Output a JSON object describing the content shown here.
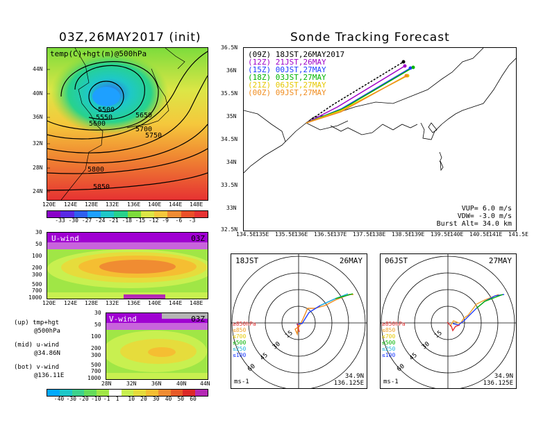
{
  "left_title": "03Z,26MAY2017 (init)",
  "right_title": "Sonde Tracking Forecast",
  "top_map": {
    "label": "temp(C)+hgt(m)@500hPa",
    "lat_ticks": [
      "44N",
      "40N",
      "36N",
      "32N",
      "28N",
      "24N"
    ],
    "lon_ticks": [
      "120E",
      "124E",
      "128E",
      "132E",
      "136E",
      "140E",
      "144E",
      "148E"
    ],
    "contours": [
      "5500",
      "5550",
      "5600",
      "5650",
      "5700",
      "5750",
      "5800",
      "5850"
    ],
    "colorbar_ticks": [
      "-33",
      "-30",
      "-27",
      "-24",
      "-21",
      "-18",
      "-15",
      "-12",
      "-9",
      "-6",
      "-3"
    ],
    "colorbar_colors": [
      "#8a00c8",
      "#5a28e6",
      "#2f60f0",
      "#1ea0ff",
      "#1ec8c8",
      "#28d28c",
      "#7ddc3c",
      "#dce646",
      "#f5c83c",
      "#f08c32",
      "#eb5028",
      "#e63232"
    ]
  },
  "uwind": {
    "label": "U-wind",
    "time": "03Z",
    "p_ticks": [
      "30",
      "50",
      "100",
      "200",
      "300",
      "500",
      "700",
      "1000"
    ],
    "lon_ticks": [
      "120E",
      "124E",
      "128E",
      "132E",
      "136E",
      "140E",
      "144E",
      "148E"
    ]
  },
  "vwind": {
    "label": "V-wind",
    "time": "03Z",
    "p_ticks": [
      "30",
      "50",
      "100",
      "200",
      "300",
      "500",
      "700",
      "1000"
    ],
    "lat_ticks": [
      "28N",
      "32N",
      "36N",
      "40N",
      "44N"
    ]
  },
  "side_labels": [
    "(up) tmp+hgt",
    "@500hPa",
    "(mid) u-wind",
    "@34.86N",
    "(bot) v-wind",
    "@136.11E"
  ],
  "wind_colorbar": {
    "ticks": [
      "-40",
      "-30",
      "-20",
      "-10",
      "-1",
      "1",
      "10",
      "20",
      "30",
      "40",
      "50",
      "60"
    ],
    "colors": [
      "#00aaff",
      "#1ec8c8",
      "#3cd28c",
      "#64dc5a",
      "#a0e646",
      "#ffffff",
      "#c8f050",
      "#e6dc3c",
      "#f5be32",
      "#f08c32",
      "#e65a28",
      "#dc2828",
      "#b428b4"
    ]
  },
  "track_map": {
    "lat_ticks": [
      "36.5N",
      "36N",
      "35.5N",
      "35N",
      "34.5N",
      "34N",
      "33.5N",
      "33N",
      "32.5N"
    ],
    "lon_ticks": [
      "134.5E",
      "135E",
      "135.5E",
      "136E",
      "136.5E",
      "137E",
      "137.5E",
      "138E",
      "138.5E",
      "139E",
      "139.5E",
      "140E",
      "140.5E",
      "141E",
      "141.5E"
    ],
    "legend": [
      {
        "text": "(09Z)  18JST,26MAY2017",
        "color": "#000000"
      },
      {
        "text": "(12Z)  21JST,26MAY",
        "color": "#a000c8"
      },
      {
        "text": "(15Z)  00JST,27MAY",
        "color": "#1e3cff"
      },
      {
        "text": "(18Z)  03JST,27MAY",
        "color": "#00b400"
      },
      {
        "text": "(21Z)  06JST,27MAY",
        "color": "#e6c800"
      },
      {
        "text": "(00Z)  09JST,27MAY",
        "color": "#f08c1e"
      }
    ],
    "params": [
      "VUP=  6.0 m/s",
      "VDW= -3.0 m/s",
      "Burst Alt= 34.0 km"
    ]
  },
  "hodo1": {
    "time": "18JST",
    "date": "26MAY",
    "rings": [
      "15",
      "30",
      "45",
      "60"
    ],
    "levels": [
      {
        "text": "≥850hPa",
        "color": "#e63232"
      },
      {
        "text": "≤850",
        "color": "#f0a028"
      },
      {
        "text": "≤700",
        "color": "#e6c800"
      },
      {
        "text": "≤500",
        "color": "#00b400"
      },
      {
        "text": "≤250",
        "color": "#1eb4dc"
      },
      {
        "text": "≤100",
        "color": "#1e3cff"
      }
    ],
    "unit": "ms-1",
    "loc1": "34.9N",
    "loc2": "136.125E"
  },
  "hodo2": {
    "time": "06JST",
    "date": "27MAY",
    "rings": [
      "15",
      "30",
      "45",
      "60"
    ],
    "levels": [
      {
        "text": "≥850hPa",
        "color": "#e63232"
      },
      {
        "text": "≤850",
        "color": "#f0a028"
      },
      {
        "text": "≤700",
        "color": "#e6c800"
      },
      {
        "text": "≤500",
        "color": "#00b400"
      },
      {
        "text": "≤250",
        "color": "#1eb4dc"
      },
      {
        "text": "≤100",
        "color": "#1e3cff"
      }
    ],
    "unit": "ms-1",
    "loc1": "34.9N",
    "loc2": "136.125E"
  }
}
